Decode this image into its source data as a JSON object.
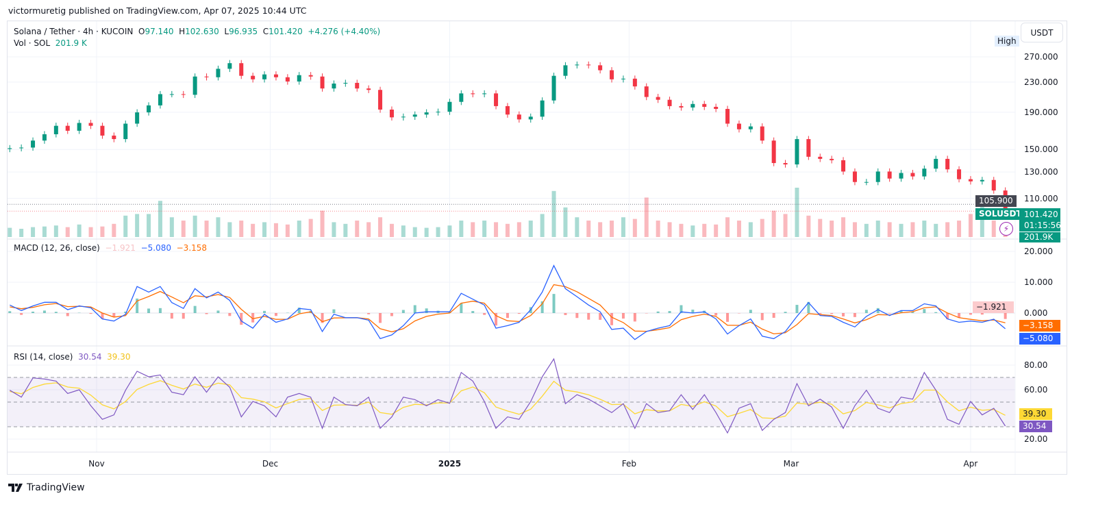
{
  "header": {
    "publisher_line": "victormuretig published on TradingView.com, Apr 07, 2025 10:44 UTC"
  },
  "legend": {
    "symbol": "Solana / Tether · 4h · KUCOIN",
    "open_label": "O",
    "open": "97.140",
    "high_label": "H",
    "high": "102.630",
    "low_label": "L",
    "low": "96.935",
    "close_label": "C",
    "close": "101.420",
    "change": "+4.276 (+4.40%)",
    "vol_label": "Vol · SOL",
    "vol": "201.9 K"
  },
  "currency_button": "USDT",
  "high_marker": "High",
  "price_markers": {
    "level_line": "105.900",
    "symbol_tag": "SOLUSDT",
    "last_price": "101.420",
    "countdown": "01:15:56",
    "volume_tag": "201.9K"
  },
  "macd_legend": {
    "title": "MACD (12, 26, close)",
    "histogram": "−1.921",
    "macd": "−5.080",
    "signal": "−3.158"
  },
  "rsi_legend": {
    "title": "RSI (14, close)",
    "rsi": "30.54",
    "ma": "39.30"
  },
  "footer": {
    "brand": "TradingView"
  },
  "colors": {
    "up": "#089981",
    "down": "#f23645",
    "macd": "#2962ff",
    "signal": "#ff6d00",
    "rsi": "#7e57c2",
    "rsi_ma": "#fdd835",
    "hist_neg_tag": "#fccbcd",
    "level_tag": "#434651"
  },
  "icons": {
    "flash": "lightning-bolt-icon",
    "logo": "tradingview-logo-icon"
  },
  "chart_data": [
    {
      "type": "candlestick",
      "title": "Solana / Tether · 4h · KUCOIN",
      "y_scale": "log",
      "y_ticks": [
        "270.000",
        "230.000",
        "190.000",
        "150.000",
        "130.000",
        "110.000"
      ],
      "x_ticks": [
        "Nov",
        "Dec",
        "2025",
        "Feb",
        "Mar",
        "Apr"
      ],
      "x_tick_dates": [
        "2024-11-01",
        "2024-12-01",
        "2025-01-01",
        "2025-02-01",
        "2025-03-01",
        "2025-04-01"
      ],
      "grid": true,
      "dates": [
        "2024-10-17",
        "2024-10-19",
        "2024-10-21",
        "2024-10-23",
        "2024-10-25",
        "2024-10-27",
        "2024-10-29",
        "2024-10-31",
        "2024-11-02",
        "2024-11-04",
        "2024-11-06",
        "2024-11-08",
        "2024-11-10",
        "2024-11-12",
        "2024-11-14",
        "2024-11-16",
        "2024-11-18",
        "2024-11-20",
        "2024-11-22",
        "2024-11-24",
        "2024-11-26",
        "2024-11-28",
        "2024-11-30",
        "2024-12-02",
        "2024-12-04",
        "2024-12-06",
        "2024-12-08",
        "2024-12-10",
        "2024-12-12",
        "2024-12-14",
        "2024-12-16",
        "2024-12-18",
        "2024-12-20",
        "2024-12-22",
        "2024-12-24",
        "2024-12-26",
        "2024-12-28",
        "2024-12-30",
        "2025-01-01",
        "2025-01-03",
        "2025-01-05",
        "2025-01-07",
        "2025-01-09",
        "2025-01-11",
        "2025-01-13",
        "2025-01-15",
        "2025-01-17",
        "2025-01-19",
        "2025-01-21",
        "2025-01-23",
        "2025-01-25",
        "2025-01-27",
        "2025-01-29",
        "2025-01-31",
        "2025-02-02",
        "2025-02-04",
        "2025-02-06",
        "2025-02-08",
        "2025-02-10",
        "2025-02-12",
        "2025-02-14",
        "2025-02-16",
        "2025-02-18",
        "2025-02-20",
        "2025-02-22",
        "2025-02-24",
        "2025-02-26",
        "2025-02-28",
        "2025-03-02",
        "2025-03-04",
        "2025-03-06",
        "2025-03-08",
        "2025-03-10",
        "2025-03-12",
        "2025-03-14",
        "2025-03-16",
        "2025-03-18",
        "2025-03-20",
        "2025-03-22",
        "2025-03-24",
        "2025-03-26",
        "2025-03-28",
        "2025-03-30",
        "2025-04-01",
        "2025-04-03",
        "2025-04-05",
        "2025-04-07"
      ],
      "close": [
        151.2,
        151.8,
        158.7,
        165.2,
        174.3,
        168.9,
        177.5,
        174.3,
        163.8,
        160.2,
        176.7,
        189.8,
        198.4,
        213.1,
        213.1,
        212.2,
        238.3,
        237.2,
        250.3,
        259.4,
        239.4,
        234.1,
        241.5,
        237.2,
        230.9,
        240.4,
        238.3,
        220.9,
        227.9,
        228.9,
        220.9,
        218.9,
        193.2,
        183.9,
        184.7,
        187.2,
        189.8,
        190.6,
        202.9,
        214.1,
        213.1,
        214.1,
        197.5,
        187.2,
        181.5,
        184.7,
        204.7,
        239.4,
        255.9,
        257.0,
        255.9,
        248.0,
        234.1,
        235.1,
        223.8,
        209.3,
        205.6,
        197.5,
        195.8,
        200.2,
        196.6,
        194.0,
        176.7,
        170.5,
        173.6,
        158.7,
        137.6,
        136.4,
        160.2,
        143.2,
        141.3,
        140.1,
        130.4,
        122.0,
        122.0,
        130.4,
        124.7,
        129.2,
        126.4,
        132.8,
        141.3,
        132.2,
        124.2,
        122.5,
        123.6,
        115.6,
        101.42
      ],
      "volume_k": [
        280,
        250,
        300,
        320,
        350,
        300,
        380,
        300,
        320,
        400,
        650,
        700,
        700,
        1100,
        600,
        500,
        650,
        500,
        600,
        450,
        500,
        400,
        450,
        420,
        380,
        500,
        550,
        800,
        450,
        400,
        500,
        450,
        600,
        400,
        350,
        300,
        280,
        300,
        350,
        500,
        450,
        500,
        450,
        400,
        450,
        500,
        700,
        1400,
        900,
        600,
        500,
        450,
        500,
        600,
        550,
        1200,
        500,
        450,
        400,
        350,
        400,
        380,
        600,
        500,
        450,
        550,
        800,
        700,
        1500,
        650,
        550,
        500,
        600,
        450,
        400,
        500,
        450,
        400,
        450,
        500,
        400,
        450,
        500,
        700,
        1000,
        500,
        201.9
      ]
    },
    {
      "type": "line",
      "title": "MACD (12, 26, close)",
      "y_ticks": [
        "20.000",
        "10.000",
        "0.000"
      ],
      "series": [
        {
          "name": "MACD",
          "values": [
            2.6,
            0.8,
            2.3,
            3.5,
            3.5,
            1.1,
            2.3,
            1.7,
            -1.9,
            -2.6,
            -0.4,
            8.6,
            6.8,
            8.6,
            3.4,
            1.5,
            7.9,
            4.9,
            6.8,
            4.1,
            -2.6,
            -4.9,
            -0.4,
            -3.0,
            -1.9,
            1.5,
            1.1,
            -6.0,
            -0.4,
            -1.5,
            -1.5,
            -2.3,
            -8.3,
            -7.1,
            -4.1,
            0,
            0.4,
            0.4,
            0.4,
            6.4,
            4.5,
            2.6,
            -4.9,
            -4.1,
            -3.0,
            1.1,
            6.8,
            15.4,
            7.9,
            5.3,
            2.6,
            0.4,
            -5.3,
            -4.9,
            -8.6,
            -6.0,
            -4.9,
            -4.1,
            0.4,
            0,
            0.4,
            -1.9,
            -6.8,
            -4.1,
            -1.9,
            -7.5,
            -8.3,
            -6.0,
            -1.1,
            3.4,
            -0.8,
            -1.1,
            -3.0,
            -4.5,
            -1.1,
            1.1,
            -0.8,
            0.8,
            0.8,
            3.0,
            2.3,
            -1.9,
            -3.0,
            -2.6,
            -3.0,
            -2.0,
            -5.08
          ]
        },
        {
          "name": "Signal",
          "values": [
            2.0,
            1.4,
            1.85,
            2.7,
            3.1,
            2.1,
            2.2,
            1.95,
            0.0,
            -1.3,
            -0.85,
            3.9,
            5.35,
            7.0,
            5.2,
            3.35,
            5.6,
            5.25,
            6.0,
            5.05,
            1.2,
            -1.85,
            -1.1,
            -2.05,
            -2.0,
            -0.25,
            0.4,
            -2.8,
            -1.6,
            -1.55,
            -1.5,
            -1.9,
            -5.1,
            -6.1,
            -5.1,
            -2.55,
            -1.1,
            -0.35,
            0.0,
            3.2,
            3.85,
            3.2,
            -0.85,
            -2.5,
            -2.75,
            -0.8,
            3.0,
            9.2,
            8.55,
            6.9,
            4.75,
            2.6,
            -1.35,
            -3.1,
            -5.85,
            -5.9,
            -5.4,
            -4.75,
            -2.15,
            -1.1,
            -0.35,
            -1.1,
            -3.95,
            -4.0,
            -2.95,
            -5.2,
            -6.75,
            -6.4,
            -3.75,
            -0.2,
            -0.5,
            -0.8,
            -1.9,
            -3.2,
            -2.15,
            -0.5,
            -0.65,
            0.1,
            0.45,
            1.7,
            2.0,
            0.05,
            -1.5,
            -2.05,
            -2.5,
            -2.25,
            -3.158
          ]
        }
      ]
    },
    {
      "type": "line",
      "title": "RSI (14, close)",
      "y_ticks": [
        "80.00",
        "60.00",
        "20.00"
      ],
      "bands": [
        70,
        50,
        30
      ],
      "series": [
        {
          "name": "RSI",
          "values": [
            59.6,
            54,
            69.6,
            68.7,
            67,
            57,
            60,
            47,
            36,
            39.6,
            59.6,
            75,
            70.5,
            72,
            58,
            56,
            70.5,
            58,
            70.5,
            62,
            38,
            50.5,
            47,
            38,
            54,
            57,
            54,
            28.7,
            54,
            48,
            47,
            54,
            28.7,
            38,
            54,
            52,
            47,
            52,
            49,
            74,
            67,
            50.5,
            28.7,
            38,
            36,
            50.5,
            70.5,
            85,
            48.7,
            56,
            52.4,
            47,
            41.5,
            48.7,
            28.7,
            48.7,
            41.5,
            43,
            56,
            44,
            56,
            41.5,
            25,
            45,
            48.7,
            27,
            36,
            41.5,
            65,
            47,
            52.4,
            46,
            28.7,
            47,
            59.6,
            45,
            41.5,
            54,
            52.4,
            74,
            59.6,
            36,
            32,
            50.5,
            39.6,
            45,
            30.54
          ]
        },
        {
          "name": "RSI MA",
          "values": [
            58.6,
            56.8,
            61.9,
            64.6,
            65.6,
            62.2,
            61.3,
            55.6,
            47.8,
            44.5,
            50.5,
            60.3,
            64.4,
            67.4,
            63.6,
            60.6,
            64.6,
            62.0,
            65.4,
            64.0,
            53.6,
            52.4,
            50.2,
            45.3,
            48.8,
            52.1,
            52.9,
            43.2,
            47.5,
            47.7,
            47.4,
            50.0,
            41.5,
            40.1,
            45.7,
            48.2,
            47.7,
            49.4,
            49.2,
            59.1,
            62.3,
            57.6,
            46.0,
            42.8,
            40.1,
            44.3,
            54.8,
            66.9,
            59.6,
            58.2,
            55.9,
            52.3,
            48.0,
            48.3,
            40.5,
            43.8,
            42.9,
            42.9,
            48.1,
            46.5,
            50.3,
            46.8,
            38.1,
            40.9,
            44.0,
            37.2,
            36.7,
            38.6,
            49.2,
            48.3,
            49.9,
            48.3,
            40.5,
            43.1,
            49.7,
            47.8,
            45.3,
            48.8,
            50.2,
            59.7,
            59.7,
            50.2,
            42.9,
            45.9,
            43.4,
            44.0,
            39.3
          ]
        }
      ]
    }
  ]
}
